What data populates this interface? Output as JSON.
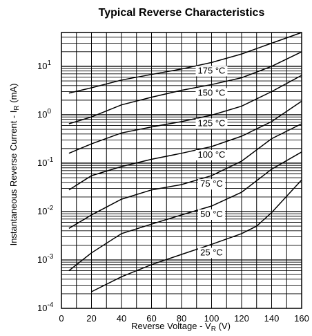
{
  "chart_data": {
    "type": "line",
    "title": "Typical Reverse Characteristics",
    "xlabel": "Reverse Voltage - V",
    "xlabel_sub": "R",
    "xlabel_unit": " (V)",
    "ylabel": "Instantaneous Reverse Current - I",
    "ylabel_sub": "R",
    "ylabel_unit": " (mA)",
    "xlim": [
      0,
      160
    ],
    "ylim": [
      0.0001,
      50
    ],
    "yscale": "log",
    "grid": true,
    "x_ticks": [
      "0",
      "20",
      "40",
      "60",
      "80",
      "100",
      "120",
      "140",
      "160"
    ],
    "y_ticks": [
      {
        "base": "10",
        "exp": "1"
      },
      {
        "base": "10",
        "exp": "0"
      },
      {
        "base": "10",
        "exp": "-1"
      },
      {
        "base": "10",
        "exp": "-2"
      },
      {
        "base": "10",
        "exp": "-3"
      },
      {
        "base": "10",
        "exp": "-4"
      }
    ],
    "series": [
      {
        "name": "175 °C",
        "points": [
          [
            5,
            2.8
          ],
          [
            20,
            3.6
          ],
          [
            40,
            5.2
          ],
          [
            60,
            6.8
          ],
          [
            80,
            8.8
          ],
          [
            100,
            12
          ],
          [
            120,
            18
          ],
          [
            140,
            30
          ],
          [
            160,
            55
          ]
        ]
      },
      {
        "name": "150 °C",
        "points": [
          [
            5,
            0.65
          ],
          [
            20,
            0.9
          ],
          [
            40,
            1.6
          ],
          [
            60,
            2.3
          ],
          [
            80,
            3.2
          ],
          [
            100,
            4.2
          ],
          [
            120,
            5.8
          ],
          [
            140,
            10
          ],
          [
            160,
            20
          ]
        ]
      },
      {
        "name": "125 °C",
        "points": [
          [
            5,
            0.16
          ],
          [
            20,
            0.25
          ],
          [
            40,
            0.42
          ],
          [
            60,
            0.56
          ],
          [
            80,
            0.72
          ],
          [
            100,
            0.98
          ],
          [
            120,
            1.5
          ],
          [
            140,
            3.0
          ],
          [
            160,
            6.5
          ]
        ]
      },
      {
        "name": "100 °C",
        "points": [
          [
            5,
            0.028
          ],
          [
            20,
            0.055
          ],
          [
            40,
            0.085
          ],
          [
            60,
            0.12
          ],
          [
            80,
            0.16
          ],
          [
            100,
            0.22
          ],
          [
            120,
            0.36
          ],
          [
            140,
            0.72
          ],
          [
            160,
            1.9
          ]
        ]
      },
      {
        "name": "75 °C",
        "points": [
          [
            5,
            0.0045
          ],
          [
            20,
            0.0085
          ],
          [
            40,
            0.018
          ],
          [
            60,
            0.028
          ],
          [
            80,
            0.036
          ],
          [
            100,
            0.055
          ],
          [
            120,
            0.11
          ],
          [
            140,
            0.32
          ],
          [
            160,
            0.65
          ]
        ]
      },
      {
        "name": "50 °C",
        "points": [
          [
            5,
            0.0006
          ],
          [
            20,
            0.0014
          ],
          [
            40,
            0.0035
          ],
          [
            60,
            0.0055
          ],
          [
            80,
            0.0085
          ],
          [
            100,
            0.013
          ],
          [
            120,
            0.025
          ],
          [
            140,
            0.075
          ],
          [
            160,
            0.17
          ]
        ]
      },
      {
        "name": "25 °C",
        "points": [
          [
            20,
            0.00022
          ],
          [
            40,
            0.00045
          ],
          [
            60,
            0.0008
          ],
          [
            80,
            0.0013
          ],
          [
            100,
            0.0021
          ],
          [
            120,
            0.0035
          ],
          [
            130,
            0.005
          ],
          [
            140,
            0.0095
          ],
          [
            160,
            0.045
          ]
        ]
      }
    ],
    "series_label_x": 100
  }
}
